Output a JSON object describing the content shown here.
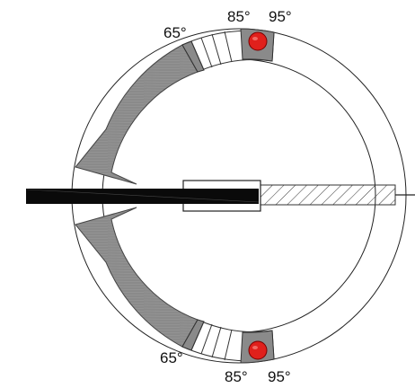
{
  "top_scale": {
    "labels": [
      "65°",
      "85°",
      "95°"
    ]
  },
  "bottom_scale": {
    "labels": [
      "65°",
      "85°",
      "95°"
    ]
  },
  "colors": {
    "ring_fill": "#8a8a8a",
    "ring_stroke": "#444444",
    "marker": "#e0201c",
    "rod": "#0a0a0a",
    "outline": "#222222",
    "background": "#ffffff"
  },
  "icons": {
    "marker": "red-dot-marker",
    "arrow": "curved-arrow"
  }
}
